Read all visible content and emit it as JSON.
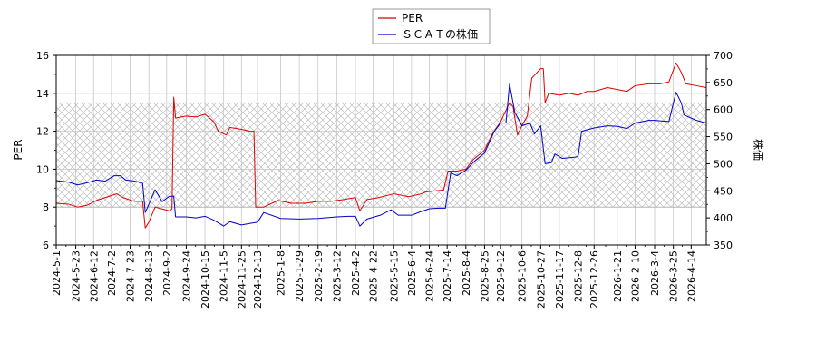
{
  "chart_data": {
    "type": "line",
    "title": "",
    "legend": {
      "placement": "top-center",
      "entries": [
        "PER",
        "ＳＣＡＴの株価"
      ]
    },
    "y_left": {
      "label": "PER",
      "range": [
        6,
        16
      ],
      "ticks": [
        "6",
        "8",
        "10",
        "12",
        "14",
        "16"
      ]
    },
    "y_right": {
      "label": "株価",
      "range": [
        350,
        700
      ],
      "ticks": [
        "350",
        "400",
        "450",
        "500",
        "550",
        "600",
        "650",
        "700"
      ]
    },
    "x_axis": {
      "range": [
        "2024-05-01",
        "2026-05-01"
      ],
      "tick_labels": [
        "2024-5-1",
        "2024-5-23",
        "2024-6-12",
        "2024-7-2",
        "2024-7-23",
        "2024-8-13",
        "2024-9-2",
        "2024-9-24",
        "2024-10-15",
        "2024-11-5",
        "2024-11-25",
        "2024-12-13",
        "2025-1-8",
        "2025-1-29",
        "2025-2-19",
        "2025-3-12",
        "2025-4-2",
        "2025-4-22",
        "2025-5-15",
        "2025-6-4",
        "2025-6-24",
        "2025-7-14",
        "2025-8-4",
        "2025-8-25",
        "2025-9-12",
        "2025-10-6",
        "2025-10-27",
        "2025-11-17",
        "2025-12-8",
        "2025-12-26",
        "2026-1-21",
        "2026-2-10",
        "2026-3-4",
        "2026-3-25",
        "2026-4-14"
      ]
    },
    "grid": true,
    "hatched_band_per": [
      8,
      13.5
    ],
    "colors": {
      "per": "#dd0000",
      "price": "#0000cc",
      "grid": "#c8c8c8",
      "hatch": "#bdbdbd"
    },
    "series": [
      {
        "name": "PER",
        "axis": "left",
        "points": [
          [
            "2024-05-01",
            8.2
          ],
          [
            "2024-05-15",
            8.15
          ],
          [
            "2024-05-25",
            8.0
          ],
          [
            "2024-06-05",
            8.1
          ],
          [
            "2024-06-15",
            8.35
          ],
          [
            "2024-06-25",
            8.5
          ],
          [
            "2024-07-08",
            8.7
          ],
          [
            "2024-07-15",
            8.5
          ],
          [
            "2024-07-28",
            8.3
          ],
          [
            "2024-08-06",
            8.3
          ],
          [
            "2024-08-09",
            6.9
          ],
          [
            "2024-08-13",
            7.2
          ],
          [
            "2024-08-20",
            8.0
          ],
          [
            "2024-08-28",
            7.9
          ],
          [
            "2024-09-05",
            7.8
          ],
          [
            "2024-09-08",
            7.9
          ],
          [
            "2024-09-10",
            13.8
          ],
          [
            "2024-09-12",
            12.7
          ],
          [
            "2024-09-24",
            12.8
          ],
          [
            "2024-10-05",
            12.75
          ],
          [
            "2024-10-15",
            12.9
          ],
          [
            "2024-10-25",
            12.5
          ],
          [
            "2024-10-30",
            12.0
          ],
          [
            "2024-11-08",
            11.8
          ],
          [
            "2024-11-12",
            12.2
          ],
          [
            "2024-11-25",
            12.1
          ],
          [
            "2024-12-05",
            12.0
          ],
          [
            "2024-12-09",
            12.0
          ],
          [
            "2024-12-11",
            8.0
          ],
          [
            "2024-12-20",
            8.0
          ],
          [
            "2025-01-05",
            8.35
          ],
          [
            "2025-01-20",
            8.2
          ],
          [
            "2025-02-05",
            8.2
          ],
          [
            "2025-02-19",
            8.3
          ],
          [
            "2025-03-05",
            8.3
          ],
          [
            "2025-03-20",
            8.4
          ],
          [
            "2025-04-02",
            8.5
          ],
          [
            "2025-04-07",
            7.8
          ],
          [
            "2025-04-15",
            8.4
          ],
          [
            "2025-04-28",
            8.5
          ],
          [
            "2025-05-15",
            8.7
          ],
          [
            "2025-06-01",
            8.55
          ],
          [
            "2025-06-15",
            8.7
          ],
          [
            "2025-06-20",
            8.8
          ],
          [
            "2025-07-10",
            8.9
          ],
          [
            "2025-07-15",
            9.9
          ],
          [
            "2025-07-25",
            9.9
          ],
          [
            "2025-08-04",
            10.0
          ],
          [
            "2025-08-12",
            10.5
          ],
          [
            "2025-08-25",
            11.0
          ],
          [
            "2025-09-02",
            11.8
          ],
          [
            "2025-09-12",
            12.5
          ],
          [
            "2025-09-22",
            13.5
          ],
          [
            "2025-09-26",
            13.3
          ],
          [
            "2025-10-01",
            11.8
          ],
          [
            "2025-10-06",
            12.3
          ],
          [
            "2025-10-12",
            12.8
          ],
          [
            "2025-10-17",
            14.8
          ],
          [
            "2025-10-27",
            15.3
          ],
          [
            "2025-10-30",
            15.3
          ],
          [
            "2025-11-01",
            13.5
          ],
          [
            "2025-11-05",
            14.0
          ],
          [
            "2025-11-17",
            13.9
          ],
          [
            "2025-11-28",
            14.0
          ],
          [
            "2025-12-08",
            13.9
          ],
          [
            "2025-12-18",
            14.1
          ],
          [
            "2025-12-26",
            14.1
          ],
          [
            "2026-01-10",
            14.3
          ],
          [
            "2026-01-21",
            14.2
          ],
          [
            "2026-02-01",
            14.1
          ],
          [
            "2026-02-10",
            14.4
          ],
          [
            "2026-02-25",
            14.5
          ],
          [
            "2026-03-10",
            14.5
          ],
          [
            "2026-03-20",
            14.6
          ],
          [
            "2026-03-28",
            15.6
          ],
          [
            "2026-04-03",
            15.1
          ],
          [
            "2026-04-08",
            14.5
          ],
          [
            "2026-04-20",
            14.4
          ],
          [
            "2026-05-01",
            14.3
          ]
        ]
      },
      {
        "name": "ＳＣＡＴの株価",
        "axis": "right",
        "points": [
          [
            "2024-05-01",
            469
          ],
          [
            "2024-05-15",
            466
          ],
          [
            "2024-05-25",
            461
          ],
          [
            "2024-06-05",
            465
          ],
          [
            "2024-06-15",
            470
          ],
          [
            "2024-06-25",
            468
          ],
          [
            "2024-07-05",
            478
          ],
          [
            "2024-07-12",
            478
          ],
          [
            "2024-07-18",
            470
          ],
          [
            "2024-07-28",
            468
          ],
          [
            "2024-08-06",
            464
          ],
          [
            "2024-08-09",
            410
          ],
          [
            "2024-08-13",
            425
          ],
          [
            "2024-08-20",
            452
          ],
          [
            "2024-08-28",
            430
          ],
          [
            "2024-09-05",
            440
          ],
          [
            "2024-09-10",
            440
          ],
          [
            "2024-09-12",
            402
          ],
          [
            "2024-09-24",
            402
          ],
          [
            "2024-10-05",
            400
          ],
          [
            "2024-10-15",
            403
          ],
          [
            "2024-10-25",
            396
          ],
          [
            "2024-11-05",
            385
          ],
          [
            "2024-11-12",
            393
          ],
          [
            "2024-11-25",
            387
          ],
          [
            "2024-12-05",
            390
          ],
          [
            "2024-12-13",
            392
          ],
          [
            "2024-12-20",
            410
          ],
          [
            "2025-01-08",
            399
          ],
          [
            "2025-01-29",
            398
          ],
          [
            "2025-02-19",
            399
          ],
          [
            "2025-03-12",
            402
          ],
          [
            "2025-03-25",
            403
          ],
          [
            "2025-04-02",
            403
          ],
          [
            "2025-04-07",
            385
          ],
          [
            "2025-04-15",
            398
          ],
          [
            "2025-04-30",
            405
          ],
          [
            "2025-05-12",
            415
          ],
          [
            "2025-05-20",
            405
          ],
          [
            "2025-06-04",
            405
          ],
          [
            "2025-06-15",
            412
          ],
          [
            "2025-06-24",
            417
          ],
          [
            "2025-07-05",
            418
          ],
          [
            "2025-07-12",
            418
          ],
          [
            "2025-07-18",
            483
          ],
          [
            "2025-07-25",
            478
          ],
          [
            "2025-08-04",
            488
          ],
          [
            "2025-08-14",
            505
          ],
          [
            "2025-08-25",
            520
          ],
          [
            "2025-09-05",
            560
          ],
          [
            "2025-09-12",
            575
          ],
          [
            "2025-09-18",
            575
          ],
          [
            "2025-09-22",
            647
          ],
          [
            "2025-09-28",
            595
          ],
          [
            "2025-10-06",
            570
          ],
          [
            "2025-10-15",
            575
          ],
          [
            "2025-10-20",
            555
          ],
          [
            "2025-10-27",
            570
          ],
          [
            "2025-11-01",
            500
          ],
          [
            "2025-11-08",
            502
          ],
          [
            "2025-11-12",
            518
          ],
          [
            "2025-11-20",
            510
          ],
          [
            "2025-12-04",
            512
          ],
          [
            "2025-12-08",
            513
          ],
          [
            "2025-12-12",
            560
          ],
          [
            "2025-12-26",
            566
          ],
          [
            "2026-01-10",
            570
          ],
          [
            "2026-01-21",
            569
          ],
          [
            "2026-02-01",
            565
          ],
          [
            "2026-02-10",
            575
          ],
          [
            "2026-02-25",
            580
          ],
          [
            "2026-03-04",
            580
          ],
          [
            "2026-03-20",
            578
          ],
          [
            "2026-03-28",
            632
          ],
          [
            "2026-04-03",
            612
          ],
          [
            "2026-04-06",
            590
          ],
          [
            "2026-04-20",
            580
          ],
          [
            "2026-05-01",
            575
          ]
        ]
      }
    ]
  }
}
